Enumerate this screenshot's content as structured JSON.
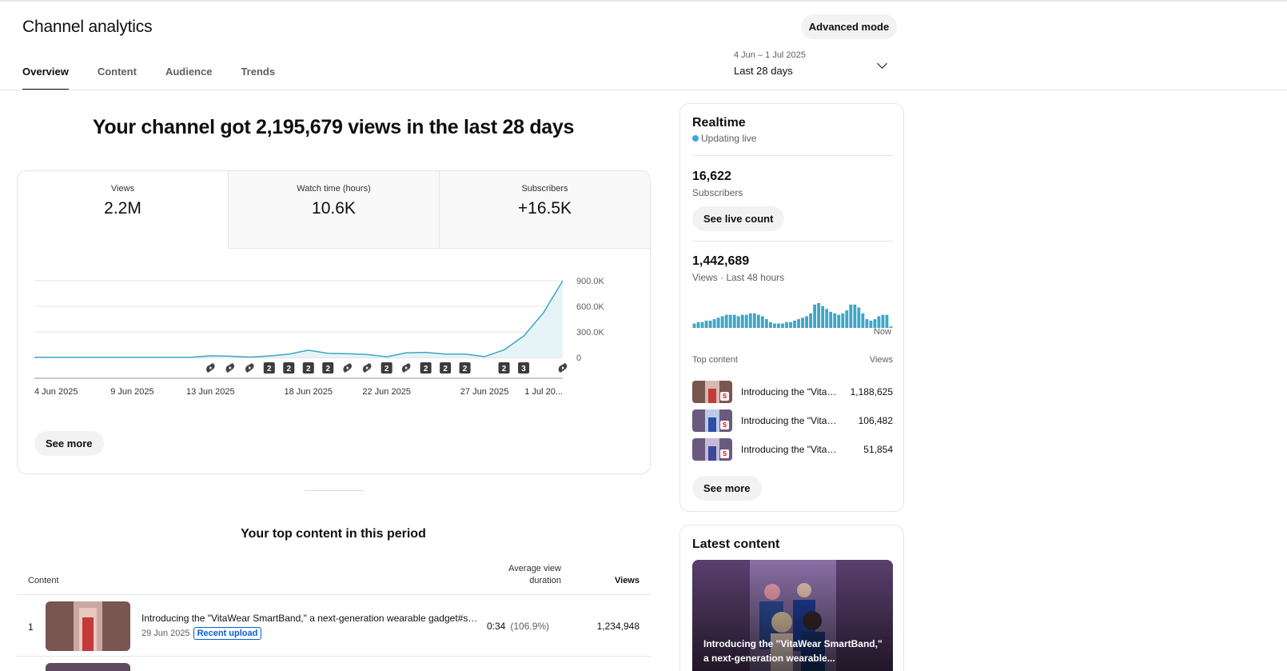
{
  "header": {
    "title": "Channel analytics",
    "advanced_mode": "Advanced mode"
  },
  "tabs": [
    {
      "label": "Overview",
      "active": true
    },
    {
      "label": "Content",
      "active": false
    },
    {
      "label": "Audience",
      "active": false
    },
    {
      "label": "Trends",
      "active": false
    }
  ],
  "date_range": {
    "range": "4 Jun – 1 Jul 2025",
    "period": "Last 28 days",
    "icon": "chevron-down-icon"
  },
  "headline": "Your channel got 2,195,679 views in the last 28 days",
  "metrics": [
    {
      "label": "Views",
      "value": "2.2M"
    },
    {
      "label": "Watch time (hours)",
      "value": "10.6K"
    },
    {
      "label": "Subscribers",
      "value": "+16.5K"
    }
  ],
  "chart_data": {
    "type": "line",
    "title": "",
    "xlabel": "",
    "ylabel": "",
    "x_tick_labels": [
      "4 Jun 2025",
      "9 Jun 2025",
      "13 Jun 2025",
      "18 Jun 2025",
      "22 Jun 2025",
      "27 Jun 2025",
      "1 Jul 20..."
    ],
    "y_tick_labels": [
      "900.0K",
      "600.0K",
      "300.0K",
      "0"
    ],
    "ylim": [
      0,
      900000
    ],
    "series": [
      {
        "values": [
          2000,
          2000,
          2000,
          2000,
          2000,
          2000,
          2000,
          2000,
          2000,
          20000,
          15000,
          5000,
          18000,
          40000,
          85000,
          50000,
          45000,
          35000,
          8000,
          55000,
          60000,
          40000,
          40000,
          10000,
          90000,
          250000,
          520000,
          900000
        ]
      }
    ],
    "upload_markers": [
      {
        "day": 9,
        "kind": "short"
      },
      {
        "day": 10,
        "kind": "short"
      },
      {
        "day": 11,
        "kind": "short"
      },
      {
        "day": 12,
        "kind": "count",
        "label": "2"
      },
      {
        "day": 13,
        "kind": "count",
        "label": "2"
      },
      {
        "day": 14,
        "kind": "count",
        "label": "2"
      },
      {
        "day": 15,
        "kind": "count",
        "label": "2"
      },
      {
        "day": 16,
        "kind": "short"
      },
      {
        "day": 17,
        "kind": "short"
      },
      {
        "day": 18,
        "kind": "count",
        "label": "2"
      },
      {
        "day": 19,
        "kind": "short"
      },
      {
        "day": 20,
        "kind": "count",
        "label": "2"
      },
      {
        "day": 21,
        "kind": "count",
        "label": "2"
      },
      {
        "day": 22,
        "kind": "count",
        "label": "2"
      },
      {
        "day": 24,
        "kind": "count",
        "label": "2"
      },
      {
        "day": 25,
        "kind": "count",
        "label": "3"
      },
      {
        "day": 27,
        "kind": "short"
      }
    ],
    "color": "#3ea6c7",
    "fill": "#e6f4f8",
    "grid": true
  },
  "main_see_more": "See more",
  "top_content": {
    "title": "Your top content in this period",
    "columns": {
      "content": "Content",
      "avd": "Average view duration",
      "views": "Views"
    },
    "rows": [
      {
        "rank": "1",
        "title": "Introducing the \"VitaWear SmartBand,\" a next-generation wearable gadget#shorts #technology",
        "date": "29 Jun 2025",
        "badge": "Recent upload",
        "avd": "0:34",
        "avd_pct": "(106.9%)",
        "views": "1,234,948"
      }
    ]
  },
  "realtime": {
    "title": "Realtime",
    "status": "Updating live",
    "subscribers_value": "16,622",
    "subscribers_label": "Subscribers",
    "live_count_btn": "See live count",
    "views_value": "1,442,689",
    "views_label": "Views · Last 48 hours",
    "now_label": "Now",
    "hourly_views": [
      3,
      4,
      4,
      5,
      5,
      6,
      7,
      8,
      9,
      9,
      9,
      8,
      9,
      9,
      10,
      10,
      9,
      8,
      6,
      4,
      3,
      3,
      3,
      4,
      4,
      5,
      6,
      7,
      8,
      10,
      16,
      17,
      15,
      13,
      11,
      10,
      9,
      10,
      12,
      16,
      16,
      14,
      10,
      6,
      5,
      6,
      8,
      9,
      9,
      1
    ],
    "bar_color": "#3ea6c7",
    "top_content_label": "Top content",
    "views_col": "Views",
    "items": [
      {
        "title": "Introducing the \"VitaWear SmartBand\"",
        "views": "1,188,625"
      },
      {
        "title": "Introducing the \"VitaWear SmartBand\"",
        "views": "106,482"
      },
      {
        "title": "Introducing the \"VitaWear SmartBand\"",
        "views": "51,854"
      }
    ],
    "see_more": "See more"
  },
  "latest": {
    "title": "Latest content",
    "caption": "Introducing the \"VitaWear SmartBand,\" a next-generation wearable..."
  }
}
